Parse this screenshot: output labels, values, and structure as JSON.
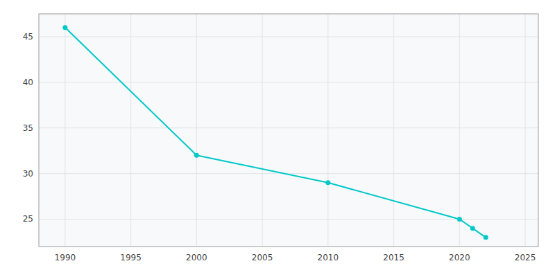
{
  "chart_data": {
    "type": "line",
    "x": [
      1990,
      2000,
      2010,
      2020,
      2021,
      2022
    ],
    "values": [
      46,
      32,
      29,
      25,
      24,
      23
    ],
    "color": "#00c8c8",
    "marker": "circle",
    "xlim": [
      1988,
      2026
    ],
    "ylim": [
      22.0,
      47.5
    ],
    "xticks": [
      1990,
      1995,
      2000,
      2005,
      2010,
      2015,
      2020,
      2025
    ],
    "yticks": [
      25,
      30,
      35,
      40,
      45
    ],
    "grid": true
  }
}
